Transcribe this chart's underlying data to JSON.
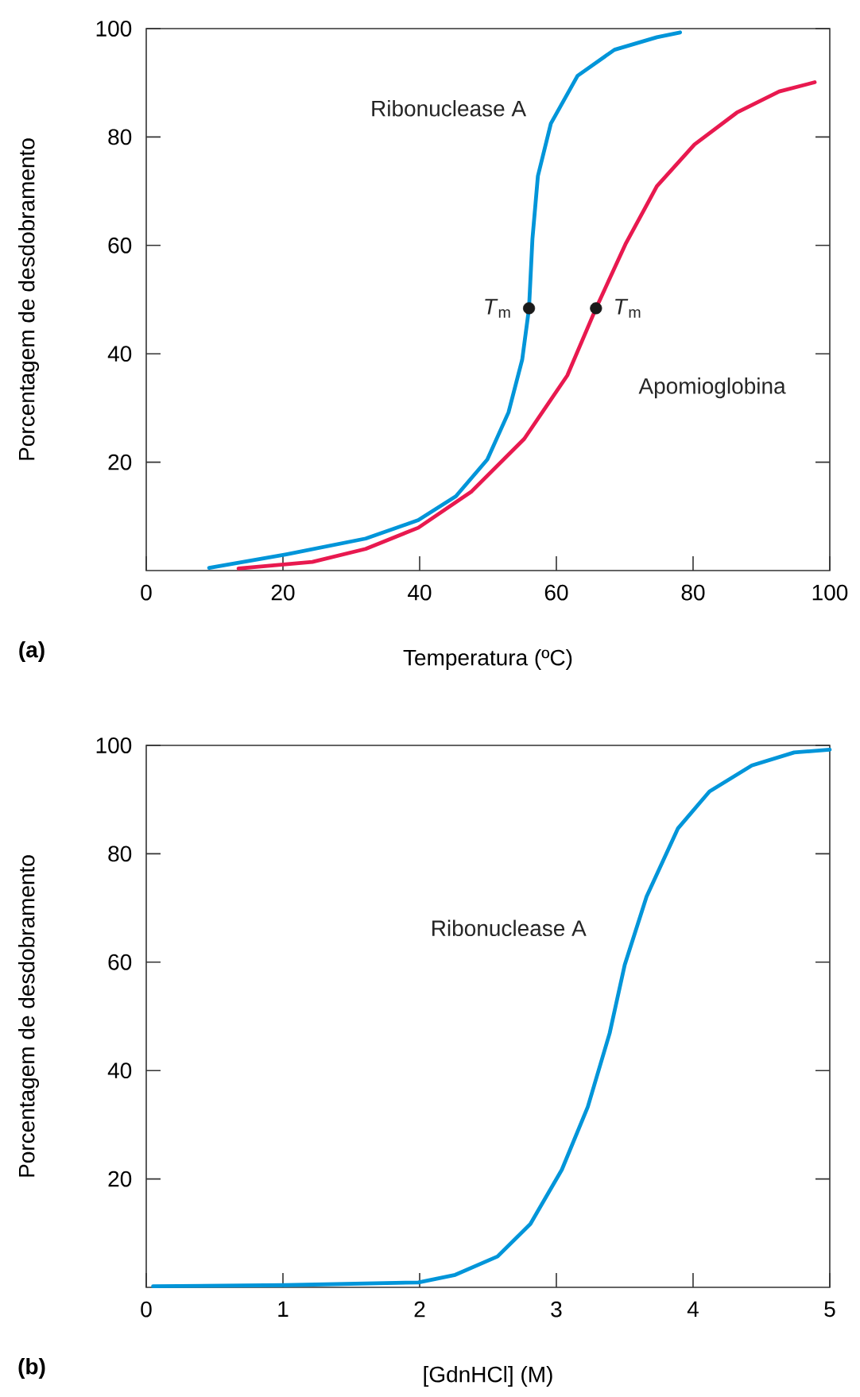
{
  "chart_data": [
    {
      "type": "line",
      "xlabel": "Temperatura (ºC)",
      "ylabel": "Porcentagem de desdobramento",
      "xlim": [
        0,
        100
      ],
      "ylim": [
        0,
        100
      ],
      "xticks": [
        0,
        20,
        40,
        60,
        80,
        100
      ],
      "yticks": [
        20,
        40,
        60,
        80,
        100
      ],
      "series": [
        {
          "name": "Ribonuclease A",
          "color": "#0095d9",
          "x": [
            9.2,
            20.5,
            32.1,
            39.8,
            45.3,
            49.9,
            53,
            55,
            56,
            56.5,
            57.3,
            59.2,
            63.1,
            68.5,
            74.7,
            78.1
          ],
          "values": [
            0.5,
            3,
            5.9,
            9.3,
            13.7,
            20.5,
            29.2,
            38.9,
            48.4,
            61.2,
            72.8,
            82.5,
            91.3,
            96.1,
            98.4,
            99.3
          ]
        },
        {
          "name": "Apomioglobina",
          "color": "#e8194f",
          "x": [
            13.5,
            24.3,
            32.1,
            39.8,
            47.6,
            55.3,
            61.6,
            65.8,
            70.1,
            74.7,
            80.2,
            86.4,
            92.6,
            97.8
          ],
          "values": [
            0.4,
            1.6,
            4,
            7.9,
            14.6,
            24.3,
            36,
            48.4,
            60.2,
            70.9,
            78.6,
            84.5,
            88.4,
            90.1
          ]
        },
        {
          "type": "scatter",
          "marker": "circle",
          "color": "#1a1a1a",
          "x": [
            56,
            65.8
          ],
          "values": [
            48.4,
            48.4
          ]
        }
      ],
      "annotations": [
        {
          "text": "*T*$_{m}$",
          "x": 56,
          "y": 48.4
        },
        {
          "text": "*T*$_{m}$",
          "x": 65.8,
          "y": 48.4
        },
        "**(a)**"
      ]
    },
    {
      "type": "line",
      "xlabel": "[GdnHCl] (M)",
      "ylabel": "Porcentagem de desdobramento",
      "xlim": [
        0,
        5
      ],
      "ylim": [
        0,
        100
      ],
      "xticks": [
        0,
        1,
        2,
        3,
        4,
        5
      ],
      "yticks": [
        20,
        40,
        60,
        80,
        100
      ],
      "series": [
        {
          "name": "Ribonuclease A",
          "color": "#0095d9",
          "x": [
            0.05,
            1.02,
            1.99,
            2.26,
            2.57,
            2.81,
            3.04,
            3.23,
            3.39,
            3.5,
            3.66,
            3.89,
            4.12,
            4.43,
            4.74,
            5.0
          ],
          "values": [
            0.2,
            0.4,
            0.9,
            2.3,
            5.7,
            11.7,
            21.7,
            33.3,
            46.9,
            59.5,
            72.1,
            84.7,
            91.5,
            96.3,
            98.7,
            99.2
          ]
        }
      ],
      "annotations": [
        "**(b)**"
      ]
    }
  ]
}
